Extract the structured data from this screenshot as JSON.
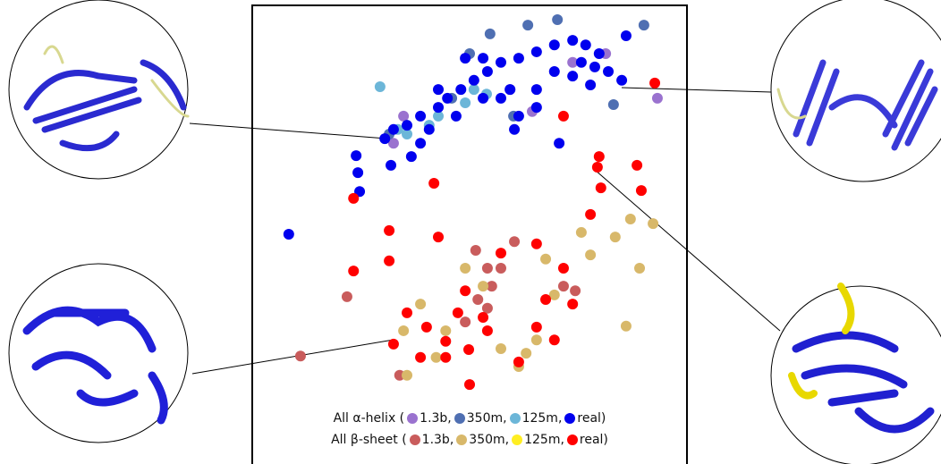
{
  "chart_data": {
    "type": "scatter",
    "xlim": [
      0,
      100
    ],
    "ylim": [
      0,
      100
    ],
    "groups": [
      {
        "label": "All α-helix (",
        "series": [
          {
            "name": "1.3b,",
            "color": "#9a72cf",
            "x": [
              34.8,
              59.3,
              64.4,
              81.3,
              93.2,
              73.7,
              32.5
            ],
            "y": [
              75.7,
              81.5,
              76.7,
              89.3,
              79.6,
              87.4,
              69.8
            ]
          },
          {
            "name": "350m,",
            "color": "#4f6fb2",
            "x": [
              54.7,
              70.2,
              90.1,
              63.4,
              31.5,
              83.1,
              60.1,
              50.0,
              45.9
            ],
            "y": [
              93.6,
              96.7,
              95.5,
              95.5,
              71.8,
              78.2,
              75.7,
              89.3,
              79.6
            ]
          },
          {
            "name": "125m,",
            "color": "#6cb6d8",
            "x": [
              29.4,
              33.5,
              40.7,
              49.0,
              51.0,
              53.9,
              42.8,
              35.6
            ],
            "y": [
              82.1,
              72.8,
              73.7,
              78.6,
              81.5,
              80.5,
              75.7,
              71.8
            ]
          },
          {
            "name": "real)",
            "color": "#0000ee",
            "x": [
              8.4,
              24.3,
              24.7,
              23.9,
              31.9,
              30.5,
              35.6,
              38.7,
              42.8,
              44.9,
              48.0,
              51.0,
              54.1,
              57.2,
              61.3,
              65.4,
              69.5,
              73.7,
              76.7,
              79.8,
              81.9,
              85.0,
              86.0,
              49.0,
              53.1,
              57.2,
              61.3,
              65.4,
              69.5,
              73.7,
              77.8,
              38.7,
              36.6,
              46.9,
              53.1,
              60.3,
              65.4,
              32.5,
              40.7,
              70.6,
              42.8,
              59.3,
              78.8,
              75.7
            ],
            "y": [
              50.0,
              63.4,
              59.3,
              67.1,
              65.0,
              70.8,
              73.7,
              75.7,
              77.6,
              79.6,
              81.5,
              83.5,
              85.4,
              87.4,
              88.3,
              89.7,
              91.2,
              92.2,
              91.2,
              89.3,
              85.4,
              83.5,
              93.2,
              88.3,
              88.3,
              79.6,
              75.7,
              81.5,
              85.4,
              84.4,
              82.5,
              69.8,
              66.9,
              75.7,
              79.6,
              72.8,
              77.6,
              72.8,
              72.8,
              69.8,
              81.5,
              81.5,
              86.4,
              87.4
            ]
          }
        ]
      },
      {
        "label": "All β-sheet (",
        "series": [
          {
            "name": "1.3b,",
            "color": "#c95c5c",
            "x": [
              11.1,
              21.8,
              33.9,
              54.1,
              55.1,
              51.4,
              54.1,
              49.0,
              71.6,
              57.2,
              60.3,
              74.3,
              51.9
            ],
            "y": [
              23.5,
              36.4,
              19.3,
              42.6,
              38.7,
              46.5,
              33.9,
              30.9,
              38.7,
              42.6,
              48.4,
              37.7,
              35.8
            ]
          },
          {
            "name": "350m,",
            "color": "#d8b86a",
            "x": [
              92.2,
              87.0,
              83.5,
              89.1,
              75.7,
              77.8,
              49.0,
              38.7,
              34.8,
              42.3,
              61.3,
              65.4,
              69.5,
              57.2,
              44.5,
              35.6,
              53.1,
              67.5,
              86.0,
              63.0
            ],
            "y": [
              52.3,
              53.3,
              49.4,
              42.6,
              50.4,
              45.5,
              42.6,
              34.8,
              29.0,
              23.2,
              21.2,
              27.0,
              36.8,
              25.1,
              29.0,
              19.3,
              38.7,
              44.6,
              30.0,
              24.1
            ]
          },
          {
            "name": "125m,",
            "color": "#ffee22",
            "x": [],
            "y": []
          },
          {
            "name": "real)",
            "color": "#ff0000",
            "x": [
              92.6,
              71.6,
              79.8,
              79.4,
              88.5,
              89.5,
              80.2,
              41.8,
              23.3,
              31.5,
              42.8,
              31.5,
              23.3,
              35.6,
              40.1,
              44.5,
              49.0,
              53.1,
              49.8,
              57.2,
              65.4,
              65.4,
              67.5,
              61.3,
              77.8,
              32.5,
              38.7,
              50.0,
              71.6,
              73.7,
              69.5,
              44.5,
              54.1,
              47.3
            ],
            "y": [
              82.9,
              75.7,
              66.9,
              64.6,
              65.0,
              59.5,
              60.1,
              61.1,
              57.8,
              50.8,
              49.4,
              44.2,
              42.0,
              32.9,
              29.8,
              26.7,
              37.7,
              31.9,
              24.9,
              45.9,
              47.9,
              29.8,
              35.8,
              22.2,
              54.3,
              26.1,
              23.2,
              17.3,
              42.6,
              34.8,
              27.0,
              23.2,
              29.0,
              32.9
            ]
          }
        ]
      }
    ]
  }
}
